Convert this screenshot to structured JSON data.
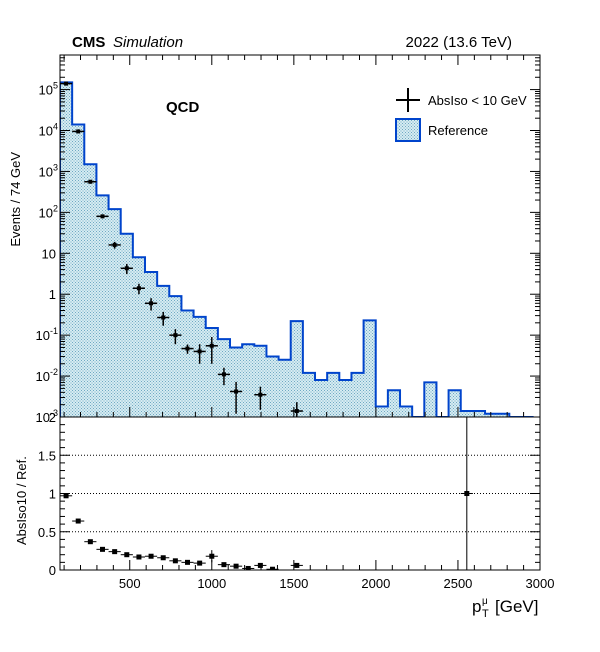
{
  "header": {
    "experiment": "CMS",
    "status": "Simulation",
    "energy": "2022 (13.6 TeV)"
  },
  "chart_data": {
    "type": "histogram",
    "process_label": "QCD",
    "xlabel": "p_T^μ [GeV]",
    "xlabel_main": "p",
    "xlabel_sub": "T",
    "xlabel_sup": "μ",
    "xlabel_unit": "[GeV]",
    "xlim": [
      75,
      3000
    ],
    "bin_width": 74,
    "x_ticks": [
      500,
      1000,
      1500,
      2000,
      2500,
      3000
    ],
    "top_panel": {
      "ylabel": "Events / 74 GeV",
      "yscale": "log",
      "ylim": [
        0.001,
        700000
      ],
      "y_ticks": [
        {
          "value": 0.001,
          "label": "10^-3",
          "base": "10",
          "exp": "-3"
        },
        {
          "value": 0.01,
          "label": "10^-2",
          "base": "10",
          "exp": "-2"
        },
        {
          "value": 0.1,
          "label": "10^-1",
          "base": "10",
          "exp": "-1"
        },
        {
          "value": 1,
          "label": "1",
          "base": "1",
          "exp": ""
        },
        {
          "value": 10,
          "label": "10",
          "base": "10",
          "exp": ""
        },
        {
          "value": 100,
          "label": "10^2",
          "base": "10",
          "exp": "2"
        },
        {
          "value": 1000,
          "label": "10^3",
          "base": "10",
          "exp": "3"
        },
        {
          "value": 10000,
          "label": "10^4",
          "base": "10",
          "exp": "4"
        },
        {
          "value": 100000,
          "label": "10^5",
          "base": "10",
          "exp": "5"
        }
      ],
      "legend_position": "top-right",
      "series": [
        {
          "name": "Reference",
          "kind": "filled-histogram",
          "color": "#0044cc",
          "fill": "#d9eef3",
          "bin_lows": [
            75,
            149,
            223,
            297,
            371,
            445,
            519,
            593,
            667,
            741,
            815,
            889,
            963,
            1037,
            1111,
            1185,
            1259,
            1333,
            1407,
            1481,
            1555,
            1629,
            1703,
            1777,
            1851,
            1925,
            1999,
            2073,
            2147,
            2221,
            2295,
            2369,
            2443,
            2517,
            2591,
            2665,
            2739,
            2813,
            2887
          ],
          "values": [
            150000,
            14000,
            1500,
            260,
            120,
            30,
            8,
            3.5,
            1.6,
            0.9,
            0.4,
            0.28,
            0.15,
            0.08,
            0.05,
            0.06,
            0.055,
            0.03,
            0.025,
            0.22,
            0.012,
            0.008,
            0.012,
            0.008,
            0.012,
            0.23,
            0.0018,
            0.0045,
            0.0018,
            0.0008,
            0.007,
            0.0008,
            0.0045,
            0.0014,
            0.0014,
            0.0012,
            0.0012,
            0.0008,
            0.0008
          ]
        },
        {
          "name": "AbsIso < 10 GeV",
          "kind": "points-with-errors",
          "color": "#000000",
          "x": [
            112,
            186,
            260,
            334,
            408,
            482,
            556,
            630,
            704,
            778,
            852,
            926,
            1000,
            1074,
            1148,
            1222,
            1296,
            1370,
            1444,
            1518,
            1592,
            1666,
            1740,
            1814,
            1888,
            1962,
            2036,
            2110,
            2184,
            2258,
            2332,
            2406,
            2480,
            2554,
            2628,
            2702,
            2776,
            2850,
            2924
          ],
          "y": [
            140000,
            9500,
            560,
            80,
            16,
            4.3,
            1.4,
            0.6,
            0.27,
            0.1,
            0.047,
            0.04,
            0.055,
            0.011,
            0.0042,
            null,
            0.0035,
            null,
            null,
            0.0014,
            null,
            null,
            null,
            null,
            null,
            null,
            null,
            null,
            null,
            null,
            null,
            null,
            null,
            null,
            null,
            null,
            null,
            null,
            null
          ],
          "y_err": [
            3000,
            400,
            40,
            8,
            3,
            1.2,
            0.4,
            0.2,
            0.1,
            0.04,
            0.012,
            0.02,
            0.035,
            0.005,
            0.003,
            null,
            0.002,
            null,
            null,
            0.0009,
            null,
            null,
            null,
            null,
            null,
            null,
            null,
            null,
            null,
            null,
            null,
            null,
            null,
            null,
            null,
            null,
            null,
            null,
            null
          ]
        }
      ]
    },
    "ratio_panel": {
      "ylabel": "AbsIso10 / Ref.",
      "ylim": [
        0,
        2
      ],
      "y_ticks": [
        0,
        0.5,
        1,
        1.5,
        2
      ],
      "y_tick_labels": [
        "0",
        "0.5",
        "1",
        "1.5",
        "2"
      ],
      "reference_lines": [
        0.5,
        1.0,
        1.5
      ],
      "x": [
        112,
        186,
        260,
        334,
        408,
        482,
        556,
        630,
        704,
        778,
        852,
        926,
        1000,
        1074,
        1148,
        1222,
        1296,
        1370,
        1444,
        1518,
        2554
      ],
      "y": [
        0.97,
        0.64,
        0.37,
        0.27,
        0.24,
        0.2,
        0.17,
        0.18,
        0.16,
        0.12,
        0.1,
        0.09,
        0.18,
        0.07,
        0.05,
        0.02,
        0.06,
        0.01,
        null,
        0.06,
        1.0
      ],
      "y_err": [
        0.01,
        0.02,
        0.02,
        0.02,
        0.02,
        0.02,
        0.02,
        0.02,
        0.02,
        0.02,
        0.02,
        0.02,
        0.08,
        0.02,
        0.02,
        0.01,
        0.03,
        0.01,
        null,
        0.03,
        1.5
      ]
    }
  }
}
